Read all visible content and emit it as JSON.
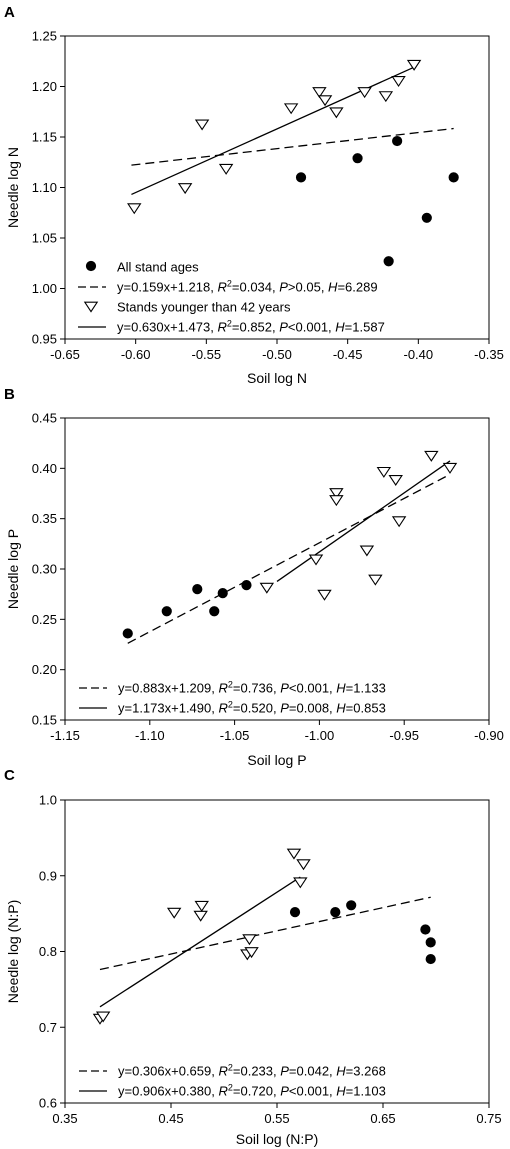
{
  "chart_data": [
    {
      "type": "scatter",
      "panel": "A",
      "xlabel": "Soil log N",
      "ylabel": "Needle log N",
      "xlim": [
        -0.65,
        -0.35
      ],
      "ylim": [
        0.95,
        1.25
      ],
      "xticks": [
        "-0.65",
        "-0.60",
        "-0.55",
        "-0.50",
        "-0.45",
        "-0.40",
        "-0.35"
      ],
      "yticks": [
        "0.95",
        "1.00",
        "1.05",
        "1.10",
        "1.15",
        "1.20",
        "1.25"
      ],
      "series": [
        {
          "name": "All stand ages",
          "marker": "filled-circle",
          "points": [
            [
              -0.483,
              1.11
            ],
            [
              -0.443,
              1.129
            ],
            [
              -0.415,
              1.146
            ],
            [
              -0.375,
              1.11
            ],
            [
              -0.394,
              1.07
            ],
            [
              -0.421,
              1.027
            ]
          ]
        },
        {
          "name": "Stands younger than 42 years",
          "marker": "open-triangle",
          "points": [
            [
              -0.601,
              1.08
            ],
            [
              -0.565,
              1.1
            ],
            [
              -0.553,
              1.163
            ],
            [
              -0.536,
              1.119
            ],
            [
              -0.49,
              1.179
            ],
            [
              -0.47,
              1.195
            ],
            [
              -0.466,
              1.187
            ],
            [
              -0.458,
              1.175
            ],
            [
              -0.438,
              1.195
            ],
            [
              -0.423,
              1.191
            ],
            [
              -0.414,
              1.206
            ],
            [
              -0.403,
              1.222
            ]
          ]
        }
      ],
      "fits": [
        {
          "style": "dashed",
          "x_range": [
            -0.603,
            -0.375
          ],
          "slope": 0.159,
          "intercept": 1.218,
          "label_eq": "y=0.159x+1.218, ",
          "label_r2": "=0.034, ",
          "label_p": ">0.05, ",
          "label_h": "=6.289"
        },
        {
          "style": "solid",
          "x_range": [
            -0.603,
            -0.403
          ],
          "slope": 0.63,
          "intercept": 1.473,
          "label_eq": "y=0.630x+1.473, ",
          "label_r2": "=0.852, ",
          "label_p": "<0.001, ",
          "label_h": "=1.587"
        }
      ],
      "legend_order": [
        "series0",
        "fit0",
        "series1",
        "fit1"
      ],
      "legend_position": "bottom-left"
    },
    {
      "type": "scatter",
      "panel": "B",
      "xlabel": "Soil log P",
      "ylabel": "Needle log P",
      "xlim": [
        -1.15,
        -0.9
      ],
      "ylim": [
        0.15,
        0.45
      ],
      "xticks": [
        "-1.15",
        "-1.10",
        "-1.05",
        "-1.00",
        "-0.95",
        "-0.90"
      ],
      "yticks": [
        "0.15",
        "0.20",
        "0.25",
        "0.30",
        "0.35",
        "0.40",
        "0.45"
      ],
      "series": [
        {
          "name": "",
          "marker": "filled-circle",
          "points": [
            [
              -1.113,
              0.236
            ],
            [
              -1.09,
              0.258
            ],
            [
              -1.072,
              0.28
            ],
            [
              -1.062,
              0.258
            ],
            [
              -1.057,
              0.276
            ],
            [
              -1.043,
              0.284
            ]
          ]
        },
        {
          "name": "",
          "marker": "open-triangle",
          "points": [
            [
              -1.031,
              0.282
            ],
            [
              -1.002,
              0.31
            ],
            [
              -0.997,
              0.275
            ],
            [
              -0.99,
              0.376
            ],
            [
              -0.99,
              0.369
            ],
            [
              -0.972,
              0.319
            ],
            [
              -0.967,
              0.29
            ],
            [
              -0.962,
              0.397
            ],
            [
              -0.955,
              0.389
            ],
            [
              -0.953,
              0.348
            ],
            [
              -0.934,
              0.413
            ],
            [
              -0.923,
              0.401
            ]
          ]
        }
      ],
      "fits": [
        {
          "style": "dashed",
          "x_range": [
            -1.113,
            -0.923
          ],
          "slope": 0.883,
          "intercept": 1.209,
          "label_eq": "y=0.883x+1.209, ",
          "label_r2": "=0.736, ",
          "label_p": "<0.001, ",
          "label_h": "=1.133"
        },
        {
          "style": "solid",
          "x_range": [
            -1.025,
            -0.923
          ],
          "slope": 1.173,
          "intercept": 1.49,
          "label_eq": "y=1.173x+1.490, ",
          "label_r2": "=0.520, ",
          "label_p": "=0.008, ",
          "label_h": "=0.853"
        }
      ],
      "legend_order": [
        "fit0",
        "fit1"
      ],
      "legend_position": "bottom-right"
    },
    {
      "type": "scatter",
      "panel": "C",
      "xlabel": "Soil log (N:P)",
      "ylabel": "Needle log (N:P)",
      "xlim": [
        0.35,
        0.75
      ],
      "ylim": [
        0.6,
        1.0
      ],
      "xticks": [
        "0.35",
        "0.45",
        "0.55",
        "0.65",
        "0.75"
      ],
      "yticks": [
        "0.6",
        "0.7",
        "0.8",
        "0.9",
        "1.0"
      ],
      "series": [
        {
          "name": "",
          "marker": "filled-circle",
          "points": [
            [
              0.567,
              0.852
            ],
            [
              0.605,
              0.852
            ],
            [
              0.62,
              0.861
            ],
            [
              0.69,
              0.829
            ],
            [
              0.695,
              0.812
            ],
            [
              0.695,
              0.79
            ]
          ]
        },
        {
          "name": "",
          "marker": "open-triangle",
          "points": [
            [
              0.383,
              0.712
            ],
            [
              0.386,
              0.715
            ],
            [
              0.453,
              0.852
            ],
            [
              0.478,
              0.848
            ],
            [
              0.479,
              0.861
            ],
            [
              0.522,
              0.797
            ],
            [
              0.524,
              0.817
            ],
            [
              0.526,
              0.8
            ],
            [
              0.566,
              0.93
            ],
            [
              0.572,
              0.892
            ],
            [
              0.575,
              0.916
            ]
          ]
        }
      ],
      "fits": [
        {
          "style": "dashed",
          "x_range": [
            0.383,
            0.695
          ],
          "slope": 0.306,
          "intercept": 0.659,
          "label_eq": "y=0.306x+0.659, ",
          "label_r2": "=0.233, ",
          "label_p": "=0.042, ",
          "label_h": "=3.268"
        },
        {
          "style": "solid",
          "x_range": [
            0.383,
            0.572
          ],
          "slope": 0.906,
          "intercept": 0.38,
          "label_eq": "y=0.906x+0.380, ",
          "label_r2": "=0.720, ",
          "label_p": "<0.001, ",
          "label_h": "=1.103"
        }
      ],
      "legend_order": [
        "fit0",
        "fit1"
      ],
      "legend_position": "bottom-right"
    }
  ],
  "legend_symbols": {
    "r2": "R",
    "r2_sup": "2",
    "p": "P",
    "h": "H"
  }
}
